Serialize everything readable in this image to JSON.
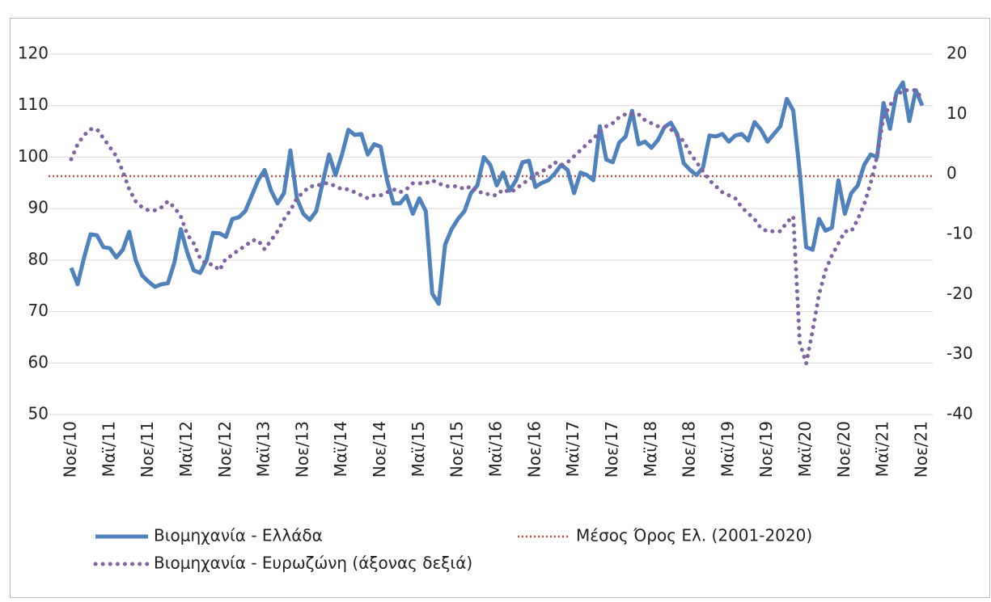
{
  "chart_data": {
    "type": "line",
    "categories": [
      "Νοε/10",
      null,
      null,
      null,
      null,
      null,
      "Μαϊ/11",
      null,
      null,
      null,
      null,
      null,
      "Νοε/11",
      null,
      null,
      null,
      null,
      null,
      "Μαϊ/12",
      null,
      null,
      null,
      null,
      null,
      "Νοε/12",
      null,
      null,
      null,
      null,
      null,
      "Μαϊ/13",
      null,
      null,
      null,
      null,
      null,
      "Νοε/13",
      null,
      null,
      null,
      null,
      null,
      "Μαϊ/14",
      null,
      null,
      null,
      null,
      null,
      "Νοε/14",
      null,
      null,
      null,
      null,
      null,
      "Μαϊ/15",
      null,
      null,
      null,
      null,
      null,
      "Νοε/15",
      null,
      null,
      null,
      null,
      null,
      "Μαϊ/16",
      null,
      null,
      null,
      null,
      null,
      "Νοε/16",
      null,
      null,
      null,
      null,
      null,
      "Μαϊ/17",
      null,
      null,
      null,
      null,
      null,
      "Νοε/17",
      null,
      null,
      null,
      null,
      null,
      "Μαϊ/18",
      null,
      null,
      null,
      null,
      null,
      "Νοε/18",
      null,
      null,
      null,
      null,
      null,
      "Μαϊ/19",
      null,
      null,
      null,
      null,
      null,
      "Νοε/19",
      null,
      null,
      null,
      null,
      null,
      "Μαϊ/20",
      null,
      null,
      null,
      null,
      null,
      "Νοε/20",
      null,
      null,
      null,
      null,
      null,
      "Μαϊ/21",
      null,
      null,
      null,
      null,
      null,
      "Νοε/21"
    ],
    "series": [
      {
        "name": "Βιομηχανία  - Ελλάδα",
        "color": "#4f81bd",
        "style": "solid",
        "values": [
          78.5,
          75.3,
          80.5,
          85,
          84.8,
          82.5,
          82.3,
          80.5,
          82,
          85.5,
          80,
          77,
          75.8,
          74.8,
          75.3,
          75.5,
          79.5,
          86,
          81.5,
          78,
          77.5,
          80,
          85.3,
          85.2,
          84.5,
          88,
          88.3,
          89.5,
          92.5,
          95.5,
          97.5,
          93.5,
          91,
          93,
          101.3,
          92,
          89,
          87.8,
          89.5,
          95,
          100.5,
          96.5,
          100.5,
          105.3,
          104.3,
          104.5,
          100.5,
          102.5,
          102,
          95.5,
          91,
          91,
          92.5,
          89,
          92,
          89.5,
          73.5,
          71.5,
          83,
          86,
          88,
          89.5,
          93,
          94.5,
          100,
          98.5,
          94.5,
          97,
          93.5,
          95.5,
          99,
          99.3,
          94.2,
          95,
          95.5,
          96.8,
          98.5,
          97.5,
          93,
          97,
          96.5,
          95.5,
          106,
          99.5,
          99,
          102.8,
          104,
          109,
          102.5,
          103,
          101.8,
          103.3,
          105.8,
          106.7,
          104.5,
          98.8,
          97.5,
          96.5,
          98,
          104.2,
          104,
          104.5,
          103,
          104.2,
          104.5,
          103.2,
          106.8,
          105.3,
          103,
          104.5,
          106,
          111.3,
          109,
          97,
          82.5,
          82,
          88,
          85.7,
          86.3,
          95.5,
          89,
          93,
          94.5,
          98.5,
          100.5,
          100,
          110.5,
          105.5,
          112.5,
          114.5,
          107,
          113,
          110
        ]
      },
      {
        "name": "Βιομηχανία - Ευρωζώνη (άξονας δεξιά)",
        "color": "#8064a2",
        "style": "dotted",
        "axis": "y2",
        "values": [
          2.5,
          5,
          6.5,
          7.5,
          7.5,
          6,
          4.5,
          3,
          0.5,
          -2.5,
          -4.5,
          -5.5,
          -6,
          -6,
          -5.5,
          -4.5,
          -5.5,
          -7,
          -10,
          -11.5,
          -14,
          -15,
          -15,
          -16,
          -14,
          -13.5,
          -12.5,
          -12,
          -11,
          -11,
          -12.5,
          -11,
          -9.5,
          -7.5,
          -6,
          -4,
          -3,
          -2,
          -2,
          -1.5,
          -1.5,
          -2,
          -2.5,
          -2.5,
          -3,
          -3.5,
          -4,
          -3.5,
          -3.5,
          -3,
          -2.5,
          -3,
          -2.5,
          -1.5,
          -1.5,
          -1.5,
          -1,
          -1.5,
          -2,
          -2,
          -2,
          -2.5,
          -2,
          -3,
          -3,
          -3.5,
          -3.5,
          -2.5,
          -3,
          -2.5,
          -1.5,
          -1,
          0,
          0.5,
          1,
          2,
          1.5,
          2,
          3,
          4,
          5,
          6,
          7,
          8,
          8.5,
          9.5,
          10,
          10,
          10,
          9,
          8.5,
          8,
          8,
          7.5,
          6.5,
          5.5,
          3.5,
          2,
          0.5,
          -1,
          -2,
          -3,
          -3.5,
          -4,
          -5.5,
          -6.5,
          -7.5,
          -9,
          -9.5,
          -9.5,
          -9.5,
          -8,
          -7,
          -28,
          -31.5,
          -26,
          -20,
          -16,
          -13.5,
          -11.5,
          -9.5,
          -9.5,
          -7.5,
          -5,
          -1.5,
          3,
          9.5,
          11.5,
          13,
          14,
          14,
          14,
          12.5
        ]
      }
    ],
    "hlines": [
      {
        "name": "Μέσος Όρος Ελ. (2001-2020)",
        "color": "#c0504d",
        "style": "dotted",
        "value": 96.3
      }
    ],
    "ylim": [
      50,
      120
    ],
    "yticks": [
      50,
      60,
      70,
      80,
      90,
      100,
      110,
      120
    ],
    "y2lim": [
      -40,
      20
    ],
    "y2ticks": [
      -40,
      -30,
      -20,
      -10,
      0,
      10,
      20
    ],
    "grid": true,
    "legend": "bottom"
  }
}
